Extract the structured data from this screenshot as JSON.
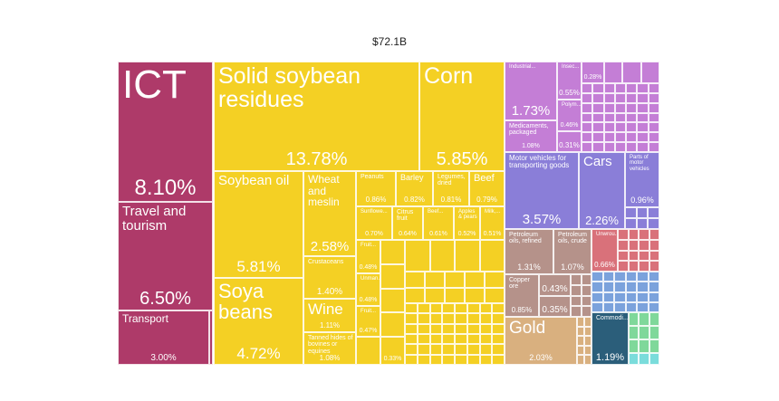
{
  "title": "$72.1B",
  "chart_data": {
    "type": "treemap",
    "title": "$72.1B",
    "colors": {
      "services": "#AE3A69",
      "vegetable": "#F4D024",
      "chemicals": "#C47ED6",
      "transportation": "#8A7ED8",
      "minerals": "#B5928A",
      "precious_metals": "#D9B07F",
      "metals": "#D9717A",
      "machinery": "#7BA2DC",
      "misc": "#2B5E7A",
      "green": "#7FD89A",
      "cyan": "#7ADCDB"
    },
    "items": [
      {
        "label": "ICT",
        "share": "8.10%",
        "group": "services"
      },
      {
        "label": "Travel and tourism",
        "share": "6.50%",
        "group": "services"
      },
      {
        "label": "Transport",
        "share": "3.00%",
        "group": "services"
      },
      {
        "label": "Solid soybean residues",
        "share": "13.78%",
        "group": "vegetable"
      },
      {
        "label": "Corn",
        "share": "5.85%",
        "group": "vegetable"
      },
      {
        "label": "Soybean oil",
        "share": "5.81%",
        "group": "vegetable"
      },
      {
        "label": "Soya beans",
        "share": "4.72%",
        "group": "vegetable"
      },
      {
        "label": "Wheat and meslin",
        "share": "2.58%",
        "group": "vegetable"
      },
      {
        "label": "Crustaceans",
        "share": "1.40%",
        "group": "vegetable"
      },
      {
        "label": "Wine",
        "share": "1.11%",
        "group": "vegetable"
      },
      {
        "label": "Tanned hides of bovines or equines",
        "share": "1.08%",
        "group": "vegetable"
      },
      {
        "label": "Peanuts",
        "share": "0.86%",
        "group": "vegetable"
      },
      {
        "label": "Barley",
        "share": "0.82%",
        "group": "vegetable"
      },
      {
        "label": "Legumes, dried",
        "share": "0.81%",
        "group": "vegetable"
      },
      {
        "label": "Beef",
        "share": "0.79%",
        "group": "vegetable"
      },
      {
        "label": "Sunflowe...",
        "share": "0.70%",
        "group": "vegetable"
      },
      {
        "label": "Citrus fruit",
        "share": "0.64%",
        "group": "vegetable"
      },
      {
        "label": "Beef...",
        "share": "0.61%",
        "group": "vegetable"
      },
      {
        "label": "Apples & pears",
        "share": "0.52%",
        "group": "vegetable"
      },
      {
        "label": "Milk,...",
        "share": "0.51%",
        "group": "vegetable"
      },
      {
        "label": "Fruit...",
        "share": "0.48%",
        "group": "vegetable"
      },
      {
        "label": "Unman...",
        "share": "0.48%",
        "group": "vegetable"
      },
      {
        "label": "Fruit...",
        "share": "0.47%",
        "group": "vegetable"
      },
      {
        "label": "",
        "share": "0.33%",
        "group": "vegetable"
      },
      {
        "label": "Industrial...",
        "share": "1.73%",
        "group": "chemicals"
      },
      {
        "label": "Medicaments, packaged",
        "share": "1.08%",
        "group": "chemicals"
      },
      {
        "label": "Insec...",
        "share": "0.55%",
        "group": "chemicals"
      },
      {
        "label": "Polym...",
        "share": "0.46%",
        "group": "chemicals"
      },
      {
        "label": "",
        "share": "0.31%",
        "group": "chemicals"
      },
      {
        "label": "",
        "share": "0.28%",
        "group": "chemicals"
      },
      {
        "label": "Motor vehicles for transporting goods",
        "share": "3.57%",
        "group": "transportation"
      },
      {
        "label": "Cars",
        "share": "2.26%",
        "group": "transportation"
      },
      {
        "label": "Parts of motor vehicles",
        "share": "0.96%",
        "group": "transportation"
      },
      {
        "label": "Petroleum oils, refined",
        "share": "1.31%",
        "group": "minerals"
      },
      {
        "label": "Petroleum oils, crude",
        "share": "1.07%",
        "group": "minerals"
      },
      {
        "label": "Copper ore",
        "share": "0.85%",
        "group": "minerals"
      },
      {
        "label": "",
        "share": "0.43%",
        "group": "minerals"
      },
      {
        "label": "",
        "share": "0.35%",
        "group": "minerals"
      },
      {
        "label": "Gold",
        "share": "2.03%",
        "group": "precious_metals"
      },
      {
        "label": "Unwrou...",
        "share": "0.66%",
        "group": "metals"
      },
      {
        "label": "Commodi...",
        "share": "1.19%",
        "group": "misc"
      }
    ]
  }
}
